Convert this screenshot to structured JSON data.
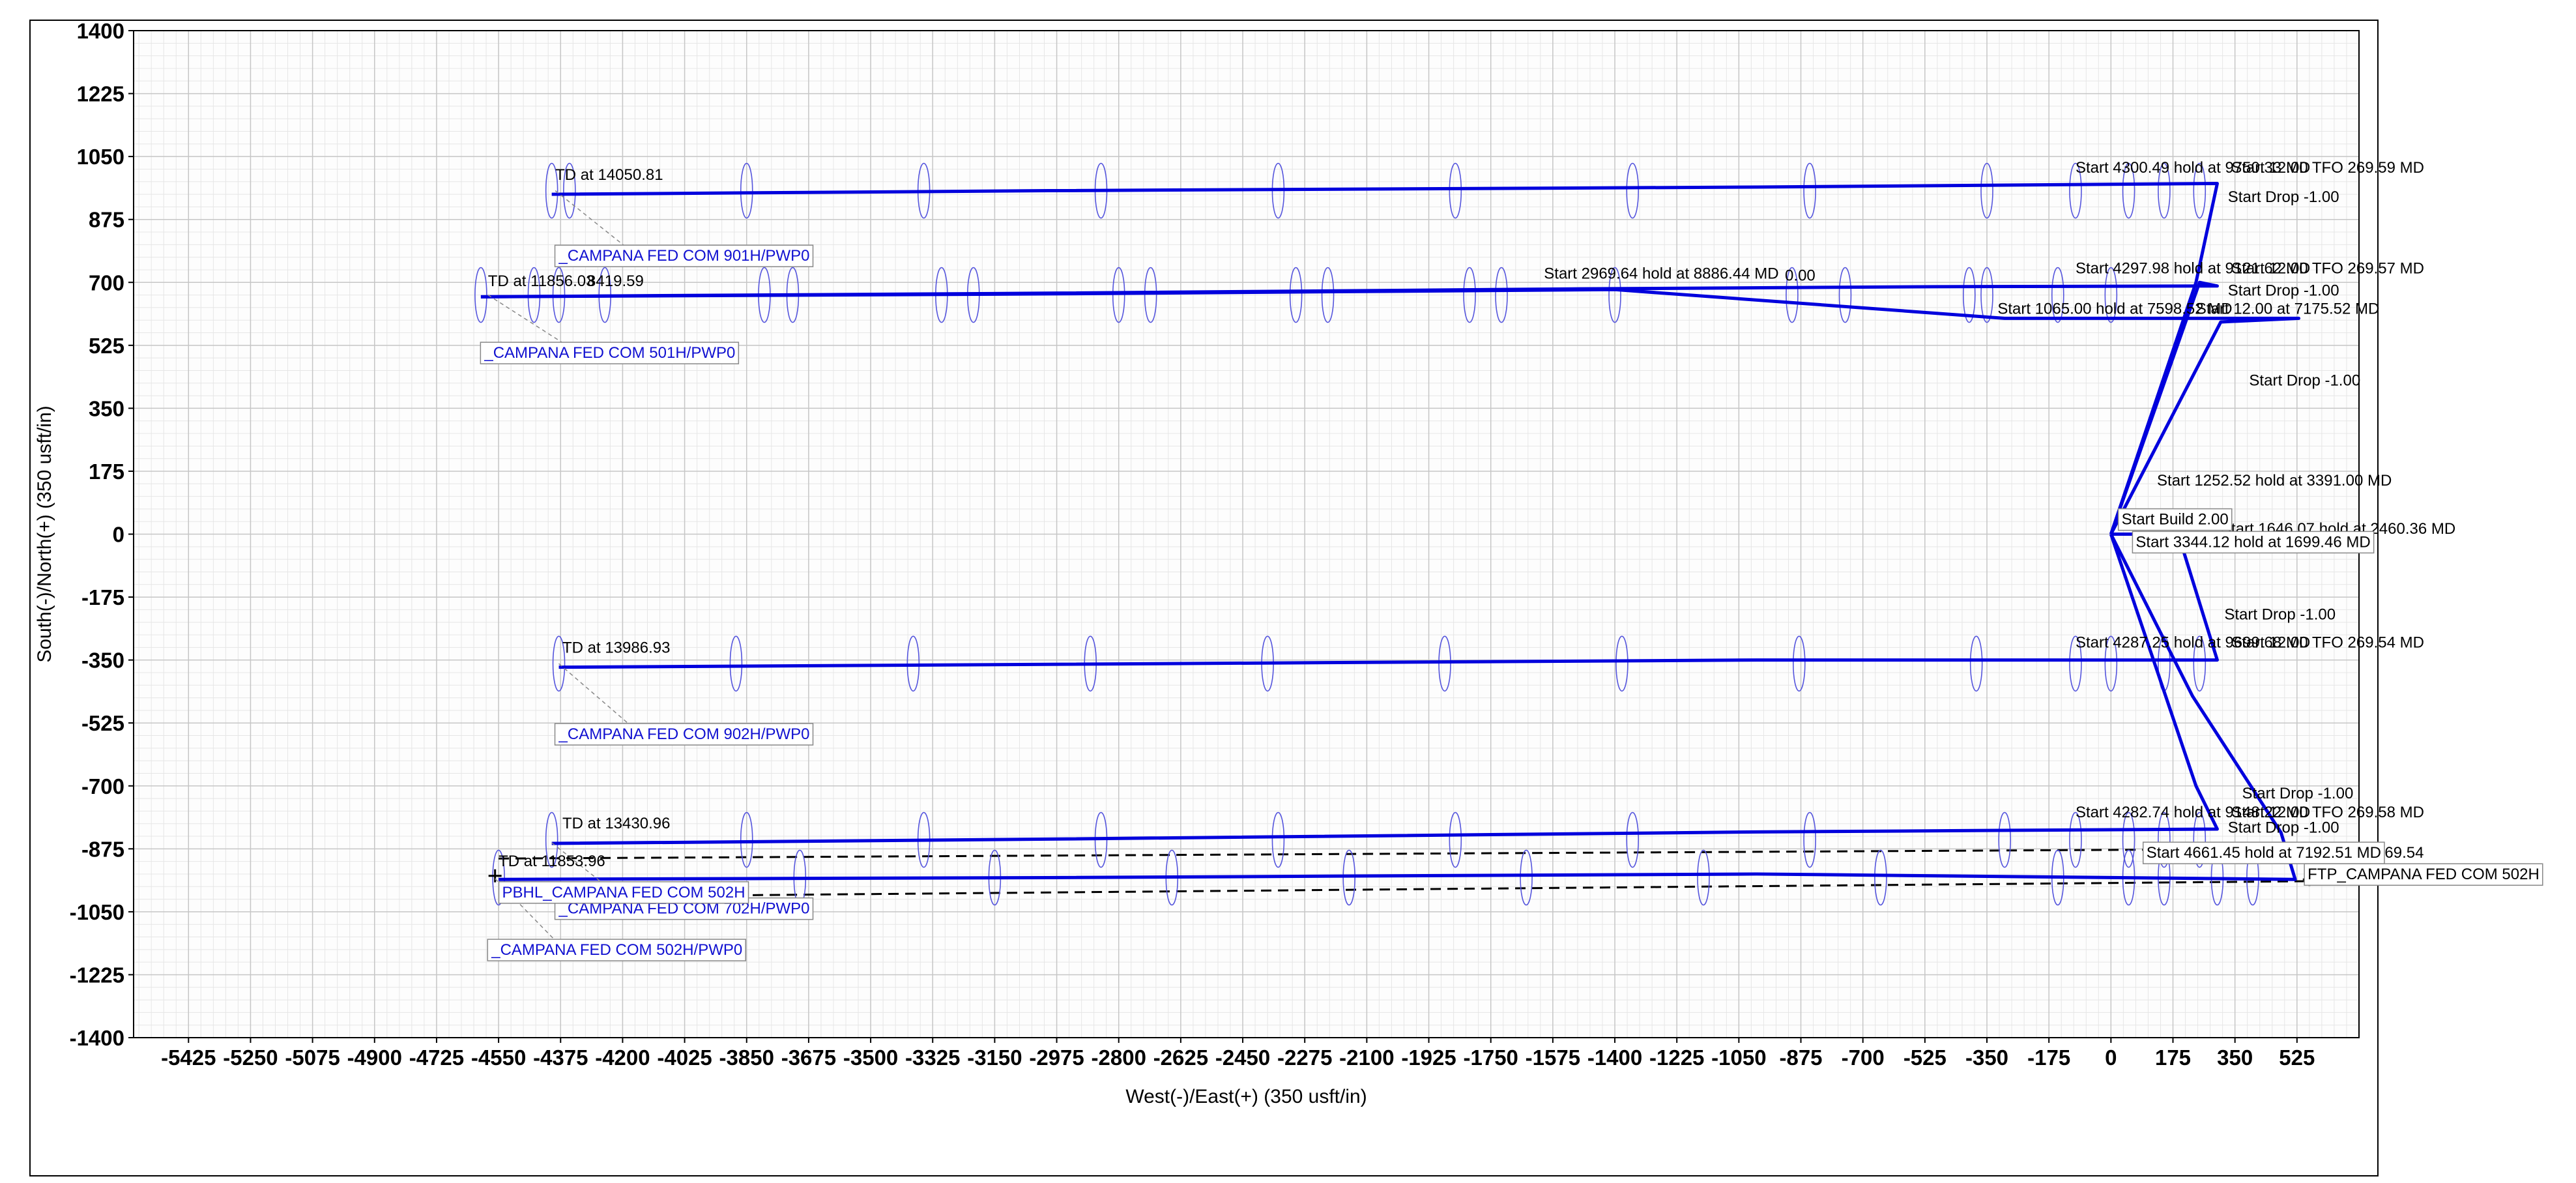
{
  "chart_data": {
    "type": "line",
    "title": "",
    "xlabel": "West(-)/East(+) (350 usft/in)",
    "ylabel": "South(-)/North(+) (350 usft/in)",
    "xlim": [
      -5580,
      700
    ],
    "ylim": [
      -1400,
      1400
    ],
    "x_ticks": [
      -5425,
      -5250,
      -5075,
      -4900,
      -4725,
      -4550,
      -4375,
      -4200,
      -4025,
      -3850,
      -3675,
      -3500,
      -3325,
      -3150,
      -2975,
      -2800,
      -2625,
      -2450,
      -2275,
      -2100,
      -1925,
      -1750,
      -1575,
      -1400,
      -1225,
      -1050,
      -875,
      -700,
      -525,
      -350,
      -175,
      0,
      175,
      350,
      525
    ],
    "y_ticks": [
      1400,
      1225,
      1050,
      875,
      700,
      525,
      350,
      175,
      0,
      -175,
      -350,
      -525,
      -700,
      -875,
      -1050,
      -1225,
      -1400
    ],
    "grid": true,
    "series": [
      {
        "name": "_CAMPANA FED COM 901H/PWP0",
        "points": [
          [
            0,
            0
          ],
          [
            240,
            700
          ],
          [
            300,
            975
          ],
          [
            -1000,
            965
          ],
          [
            -3000,
            955
          ],
          [
            -4400,
            945
          ]
        ]
      },
      {
        "name": "_CAMPANA FED COM 501H/PWP0",
        "points": [
          [
            0,
            0
          ],
          [
            310,
            590
          ],
          [
            530,
            600
          ],
          [
            -100,
            600
          ],
          [
            -300,
            600
          ],
          [
            -1400,
            680
          ],
          [
            -3000,
            668
          ],
          [
            -4600,
            660
          ]
        ]
      },
      {
        "name": "CAMPANA FED COM 702H",
        "points": [
          [
            0,
            0
          ],
          [
            250,
            700
          ],
          [
            300,
            690
          ],
          [
            -500,
            688
          ],
          [
            -1500,
            682
          ],
          [
            -3000,
            670
          ],
          [
            -4600,
            660
          ]
        ]
      },
      {
        "name": "_CAMPANA FED COM 902H/PWP0",
        "points": [
          [
            0,
            0
          ],
          [
            190,
            0
          ],
          [
            300,
            -350
          ],
          [
            -1000,
            -350
          ],
          [
            -3000,
            -362
          ],
          [
            -4380,
            -370
          ]
        ]
      },
      {
        "name": "_CAMPANA FED COM 702H/PWP0",
        "points": [
          [
            0,
            0
          ],
          [
            240,
            -700
          ],
          [
            300,
            -820
          ],
          [
            -1000,
            -828
          ],
          [
            -3000,
            -848
          ],
          [
            -4400,
            -860
          ]
        ]
      },
      {
        "name": "_CAMPANA FED COM 502H/PWP0",
        "points": [
          [
            0,
            0
          ],
          [
            230,
            -450
          ],
          [
            480,
            -830
          ],
          [
            520,
            -960
          ],
          [
            -1000,
            -945
          ],
          [
            -3000,
            -955
          ],
          [
            -4550,
            -960
          ]
        ]
      }
    ],
    "ellipses": {
      "series_901": {
        "y": 955,
        "x": [
          -4400,
          -4350,
          -3850,
          -3350,
          -2850,
          -2350,
          -1850,
          -1350,
          -850,
          -350,
          -100,
          50,
          150,
          250
        ]
      },
      "series_501": {
        "y": 665,
        "x": [
          -4600,
          -4450,
          -4380,
          -4250,
          -3800,
          -3720,
          -3300,
          -3210,
          -2800,
          -2710,
          -2300,
          -2210,
          -1810,
          -1720,
          -1400,
          -900,
          -750,
          -400,
          -350,
          -150,
          0
        ]
      },
      "series_902": {
        "y": -360,
        "x": [
          -4380,
          -3880,
          -3380,
          -2880,
          -2380,
          -1880,
          -1380,
          -880,
          -380,
          -100,
          0,
          150,
          250
        ]
      },
      "series_702": {
        "y": -850,
        "x": [
          -4400,
          -3850,
          -3350,
          -2850,
          -2350,
          -1850,
          -1350,
          -850,
          -300,
          -100,
          50,
          150,
          250
        ]
      },
      "series_502": {
        "y": -955,
        "x": [
          -4550,
          -3700,
          -3150,
          -2650,
          -2150,
          -1650,
          -1150,
          -650,
          -150,
          50,
          150,
          300,
          400
        ]
      }
    },
    "annotations": [
      {
        "text": "TD at 14050.81",
        "x": -4390,
        "y": 985
      },
      {
        "text": "TD at 11856.03",
        "x": -4580,
        "y": 690
      },
      {
        "text": "8419.59",
        "x": -4300,
        "y": 690
      },
      {
        "text": "TD at 13986.93",
        "x": -4370,
        "y": -330
      },
      {
        "text": "TD at 13430.96",
        "x": -4370,
        "y": -818
      },
      {
        "text": "TD at 11853.96",
        "x": -4550,
        "y": -923
      },
      {
        "text": "Start 4300.49 hold at 9750.33 MD",
        "x": -100,
        "y": 1005
      },
      {
        "text": "Start 12.00 TFO 269.59 MD",
        "x": 340,
        "y": 1005
      },
      {
        "text": "Start Drop -1.00",
        "x": 330,
        "y": 923
      },
      {
        "text": "Start 2969.64 hold at 8886.44 MD",
        "x": -1600,
        "y": 710
      },
      {
        "text": "0.00",
        "x": -920,
        "y": 705
      },
      {
        "text": "Start 4297.98 hold at 9121.62 MD",
        "x": -100,
        "y": 725
      },
      {
        "text": "Start 12.00 TFO 269.57 MD",
        "x": 340,
        "y": 725
      },
      {
        "text": "Start Drop -1.00",
        "x": 330,
        "y": 663
      },
      {
        "text": "Start 1065.00 hold at 7598.52 MD",
        "x": -320,
        "y": 613
      },
      {
        "text": "Start 12.00 at 7175.52 MD",
        "x": 240,
        "y": 613
      },
      {
        "text": "Start Drop -1.00",
        "x": 390,
        "y": 413
      },
      {
        "text": "Start 1252.52 hold at 3391.00 MD",
        "x": 130,
        "y": 135
      },
      {
        "text": "Start 1646.07 hold at 2460.36 MD",
        "x": 310,
        "y": 1
      },
      {
        "text": "Start 4287.25 hold at 9699.68 MD",
        "x": -100,
        "y": -315
      },
      {
        "text": "Start 12.00 TFO 269.54 MD",
        "x": 340,
        "y": -315
      },
      {
        "text": "Start Drop -1.00",
        "x": 320,
        "y": -237
      },
      {
        "text": "Start Drop -1.00",
        "x": 370,
        "y": -735
      },
      {
        "text": "Start Drop -1.00",
        "x": 330,
        "y": -830
      },
      {
        "text": "Start 4282.74 hold at 9148.22 MD",
        "x": -100,
        "y": -787
      },
      {
        "text": "Start 12.00 TFO 269.58 MD",
        "x": 340,
        "y": -787
      },
      {
        "text": "2.00 TFO 269.54",
        "x": 550,
        "y": -900
      }
    ],
    "boxed_annotations": [
      {
        "text": "Start Build 2.00",
        "x": 30,
        "y": 27
      },
      {
        "text": "Start 3344.12 hold at 1699.46 MD",
        "x": 70,
        "y": -36
      },
      {
        "text": "Start 4661.45 hold at 7192.51 MD",
        "x": 100,
        "y": -900
      },
      {
        "text": "FTP_CAMPANA FED COM 502H",
        "x": 555,
        "y": -960
      }
    ],
    "well_labels": [
      {
        "text": "_CAMPANA FED COM 901H/PWP0",
        "x": -4380,
        "y": 760
      },
      {
        "text": "_CAMPANA FED COM 501H/PWP0",
        "x": -4590,
        "y": 490
      },
      {
        "text": "_CAMPANA FED COM 902H/PWP0",
        "x": -4380,
        "y": -570
      },
      {
        "text": "_CAMPANA FED COM 702H/PWP0",
        "x": -4380,
        "y": -1055
      },
      {
        "text": "_CAMPANA FED COM 502H/PWP0",
        "x": -4570,
        "y": -1170
      },
      {
        "text": "PBHL_CAMPANA FED COM 502H",
        "x": -4540,
        "y": -1010
      }
    ],
    "hardlines": [
      {
        "y_start": -902,
        "y_end": -875
      },
      {
        "y_start": -1010,
        "y_end": -965
      }
    ],
    "colors": {
      "well": "#0000dd",
      "ellipse": "#5555dd",
      "label": "#1010d0",
      "grid_major": "#c6c6c6",
      "grid_minor": "#e6e6e6"
    }
  }
}
